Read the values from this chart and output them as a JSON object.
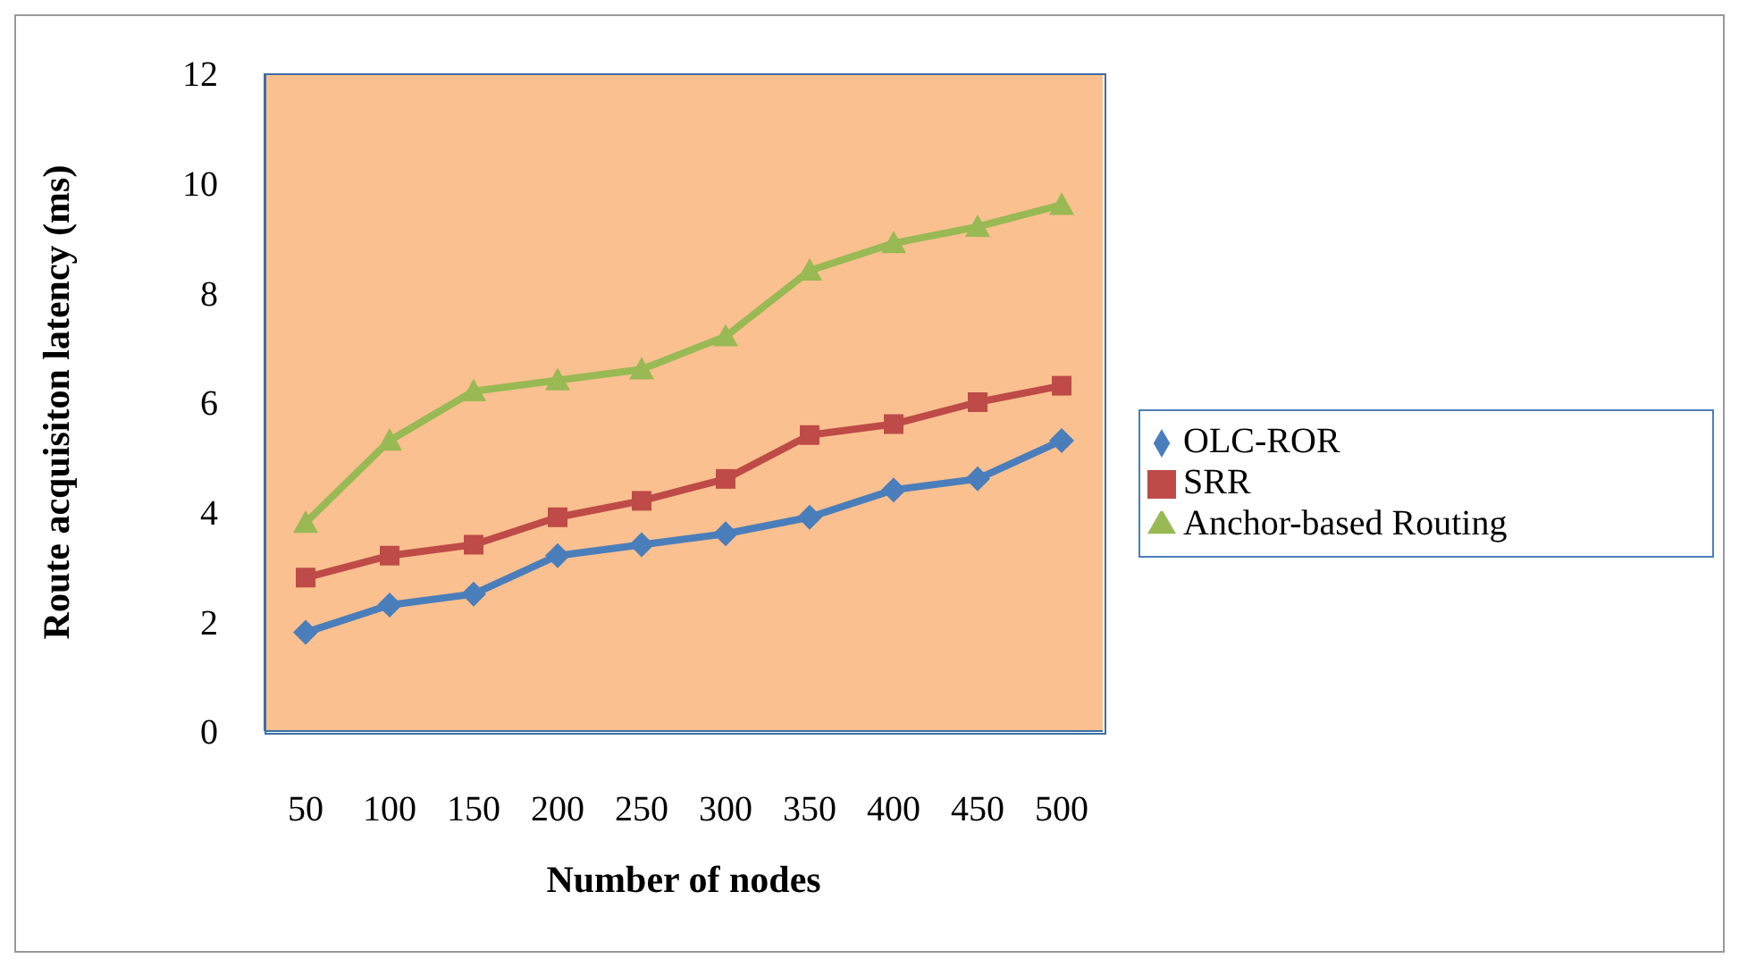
{
  "chart_data": {
    "type": "line",
    "xlabel": "Number of nodes",
    "ylabel": "Route acquisiton latency (ms)",
    "categories": [
      "50",
      "100",
      "150",
      "200",
      "250",
      "300",
      "350",
      "400",
      "450",
      "500"
    ],
    "series": [
      {
        "name": "OLC-ROR",
        "color": "#4a7ebb",
        "marker": "diamond",
        "values": [
          1.8,
          2.3,
          2.5,
          3.2,
          3.4,
          3.6,
          3.9,
          4.4,
          4.6,
          5.3
        ]
      },
      {
        "name": "SRR",
        "color": "#be4b48",
        "marker": "square",
        "values": [
          2.8,
          3.2,
          3.4,
          3.9,
          4.2,
          4.6,
          5.4,
          5.6,
          6.0,
          6.3
        ]
      },
      {
        "name": "Anchor-based Routing",
        "color": "#98b954",
        "marker": "triangle",
        "values": [
          3.8,
          5.3,
          6.2,
          6.4,
          6.6,
          7.2,
          8.4,
          8.9,
          9.2,
          9.6
        ]
      }
    ],
    "ylim": [
      0,
      12
    ],
    "yticks": [
      0,
      2,
      4,
      6,
      8,
      10,
      12
    ],
    "legend": "right"
  }
}
